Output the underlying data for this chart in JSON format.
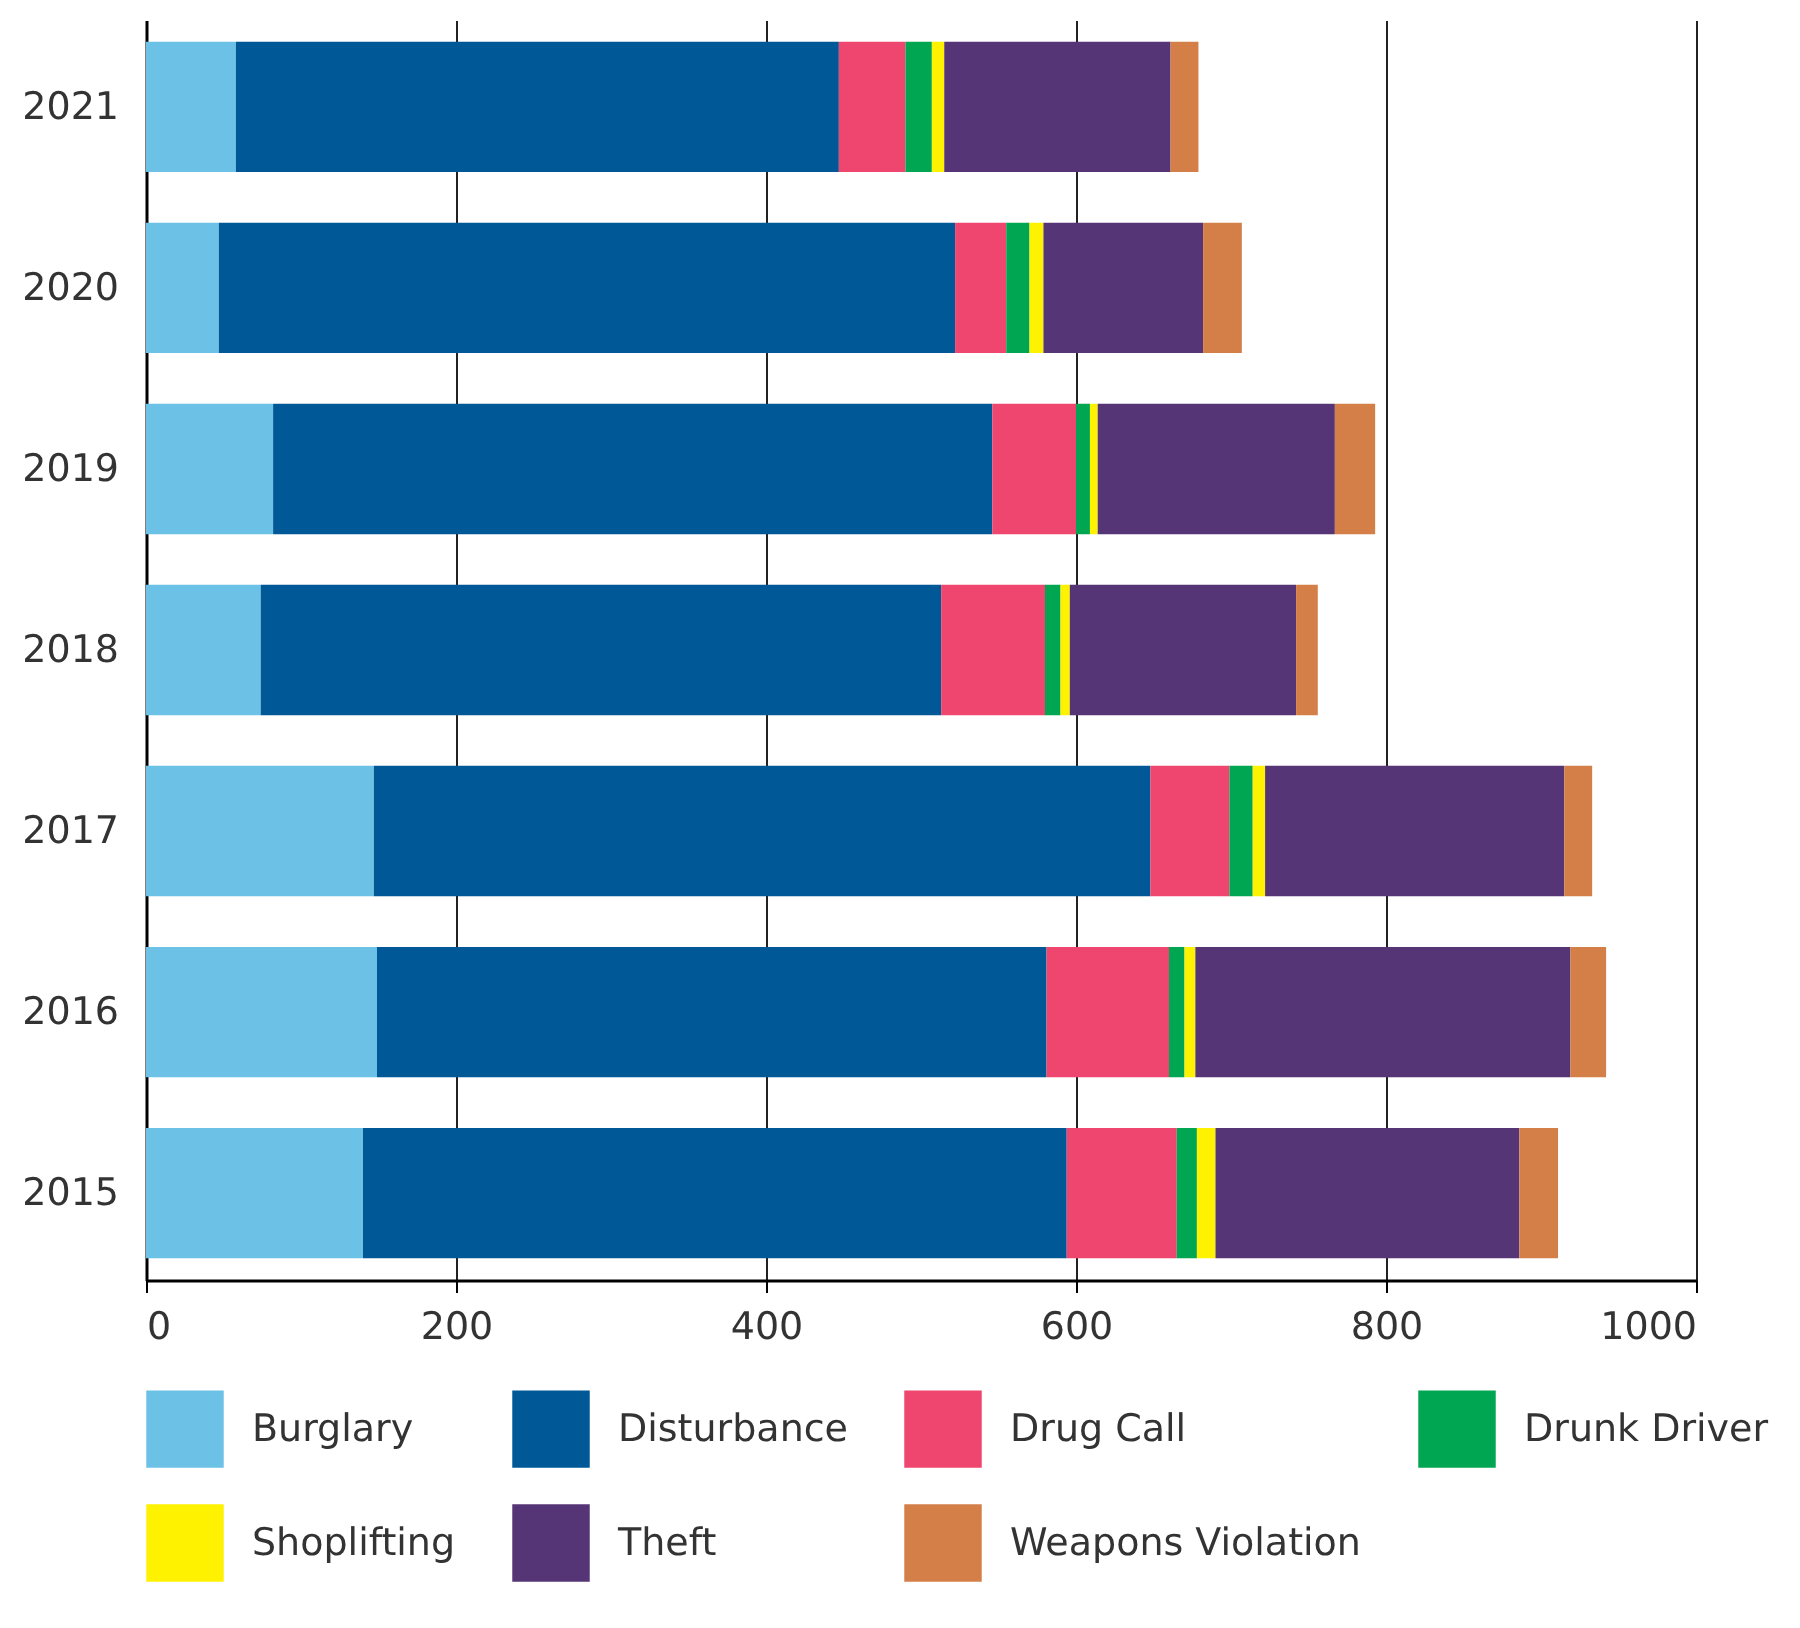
{
  "chart_data": {
    "type": "bar",
    "orientation": "horizontal",
    "stacked": true,
    "categories": [
      "2021",
      "2020",
      "2019",
      "2018",
      "2017",
      "2016",
      "2015"
    ],
    "series": [
      {
        "name": "Burglary",
        "color": "#6cc1e6",
        "values": [
          58,
          47,
          82,
          74,
          147,
          149,
          140
        ]
      },
      {
        "name": "Disturbance",
        "color": "#005897",
        "values": [
          389,
          475,
          464,
          439,
          501,
          432,
          454
        ]
      },
      {
        "name": "Drug Call",
        "color": "#ee466e",
        "values": [
          43,
          33,
          54,
          67,
          51,
          79,
          71
        ]
      },
      {
        "name": "Drunk Driver",
        "color": "#00a651",
        "values": [
          17,
          15,
          9,
          10,
          15,
          10,
          13
        ]
      },
      {
        "name": "Shoplifting",
        "color": "#fff200",
        "values": [
          8,
          9,
          5,
          6,
          8,
          7,
          12
        ]
      },
      {
        "name": "Theft",
        "color": "#553575",
        "values": [
          146,
          103,
          153,
          146,
          193,
          242,
          196
        ]
      },
      {
        "name": "Weapons Violation",
        "color": "#d57f48",
        "values": [
          18,
          25,
          26,
          14,
          18,
          23,
          25
        ]
      }
    ],
    "xlim": [
      0,
      1000
    ],
    "xticks": [
      0,
      200,
      400,
      600,
      800,
      1000
    ],
    "grid": "x",
    "legend": "bottom"
  }
}
